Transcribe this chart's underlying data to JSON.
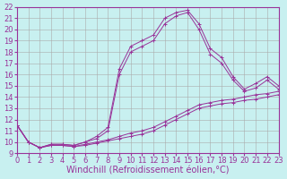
{
  "xlabel": "Windchill (Refroidissement éolien,°C)",
  "bg_color": "#c8f0f0",
  "line_color": "#993399",
  "grid_color": "#aaaaaa",
  "xlim": [
    0,
    23
  ],
  "ylim": [
    9,
    22
  ],
  "xticks": [
    0,
    1,
    2,
    3,
    4,
    5,
    6,
    7,
    8,
    9,
    10,
    11,
    12,
    13,
    14,
    15,
    16,
    17,
    18,
    19,
    20,
    21,
    22,
    23
  ],
  "yticks": [
    9,
    10,
    11,
    12,
    13,
    14,
    15,
    16,
    17,
    18,
    19,
    20,
    21,
    22
  ],
  "lines": [
    {
      "x": [
        0,
        1,
        2,
        3,
        4,
        5,
        6,
        7,
        8,
        9,
        10,
        11,
        12,
        13,
        14,
        15,
        16,
        17,
        18,
        19,
        20,
        21,
        22,
        23
      ],
      "y": [
        11.5,
        10.0,
        9.5,
        9.8,
        9.8,
        9.7,
        10.0,
        10.5,
        11.3,
        16.5,
        18.5,
        19.0,
        19.5,
        21.0,
        21.5,
        21.7,
        20.5,
        18.3,
        17.5,
        15.8,
        14.7,
        15.2,
        15.8,
        15.0
      ]
    },
    {
      "x": [
        0,
        1,
        2,
        3,
        4,
        5,
        6,
        7,
        8,
        9,
        10,
        11,
        12,
        13,
        14,
        15,
        16,
        17,
        18,
        19,
        20,
        21,
        22,
        23
      ],
      "y": [
        11.5,
        10.0,
        9.5,
        9.8,
        9.8,
        9.7,
        10.0,
        10.3,
        11.0,
        16.0,
        18.0,
        18.5,
        19.0,
        20.5,
        21.2,
        21.5,
        20.0,
        17.8,
        17.0,
        15.5,
        14.5,
        14.8,
        15.5,
        14.7
      ]
    },
    {
      "x": [
        0,
        1,
        2,
        3,
        4,
        5,
        6,
        7,
        8,
        9,
        10,
        11,
        12,
        13,
        14,
        15,
        16,
        17,
        18,
        19,
        20,
        21,
        22,
        23
      ],
      "y": [
        11.5,
        10.0,
        9.5,
        9.7,
        9.7,
        9.6,
        9.8,
        10.0,
        10.2,
        10.5,
        10.8,
        11.0,
        11.3,
        11.8,
        12.3,
        12.8,
        13.3,
        13.5,
        13.7,
        13.8,
        14.0,
        14.2,
        14.3,
        14.5
      ]
    },
    {
      "x": [
        0,
        1,
        2,
        3,
        4,
        5,
        6,
        7,
        8,
        9,
        10,
        11,
        12,
        13,
        14,
        15,
        16,
        17,
        18,
        19,
        20,
        21,
        22,
        23
      ],
      "y": [
        11.5,
        10.0,
        9.5,
        9.7,
        9.7,
        9.6,
        9.7,
        9.9,
        10.1,
        10.3,
        10.5,
        10.7,
        11.0,
        11.5,
        12.0,
        12.5,
        13.0,
        13.2,
        13.4,
        13.5,
        13.7,
        13.8,
        14.0,
        14.2
      ]
    }
  ],
  "tick_fontsize": 6,
  "label_fontsize": 7
}
